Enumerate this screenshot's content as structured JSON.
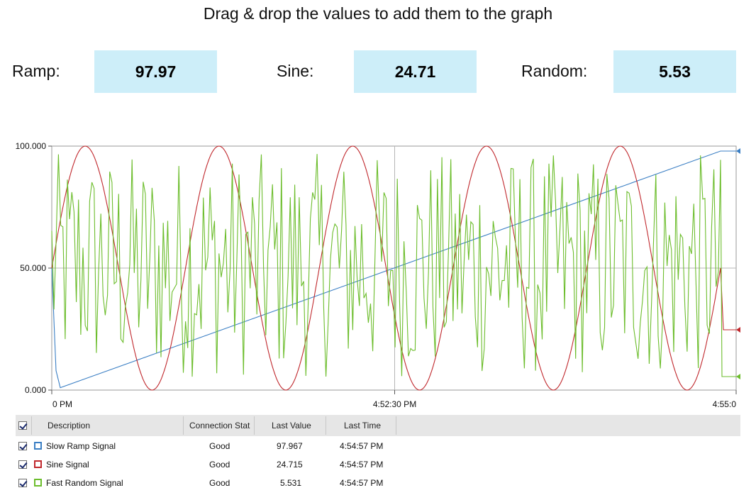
{
  "header": {
    "title": "Drag & drop the values to add them to the graph"
  },
  "values": [
    {
      "label": "Ramp:",
      "value": "97.97"
    },
    {
      "label": "Sine:",
      "value": "24.71"
    },
    {
      "label": "Random:",
      "value": "5.53"
    }
  ],
  "chart_data": {
    "type": "line",
    "y_ticks": [
      "100.000",
      "50.000",
      "0.000"
    ],
    "ylim": [
      0,
      100
    ],
    "x_ticks": [
      "0 PM",
      "4:52:30 PM",
      "4:55:0"
    ],
    "grid": true,
    "series": [
      {
        "name": "Slow Ramp Signal",
        "color": "#3b7fc4",
        "kind": "ramp",
        "start": 1,
        "end": 97.97
      },
      {
        "name": "Sine Signal",
        "color": "#c0282d",
        "kind": "sine",
        "min": 0,
        "max": 100,
        "cycles": 5,
        "start_phase": 0.5
      },
      {
        "name": "Fast Random Signal",
        "color": "#6cbd2c",
        "kind": "random",
        "min": 0,
        "max": 100,
        "last": 5.53
      }
    ]
  },
  "legend": {
    "columns": [
      "Description",
      "Connection Stat",
      "Last Value",
      "Last Time"
    ],
    "rows": [
      {
        "description": "Slow Ramp Signal",
        "status": "Good",
        "last_value": "97.967",
        "last_time": "4:54:57 PM",
        "color": "#3b7fc4"
      },
      {
        "description": "Sine Signal",
        "status": "Good",
        "last_value": "24.715",
        "last_time": "4:54:57 PM",
        "color": "#c0282d"
      },
      {
        "description": "Fast Random Signal",
        "status": "Good",
        "last_value": "5.531",
        "last_time": "4:54:57 PM",
        "color": "#6cbd2c"
      }
    ]
  }
}
